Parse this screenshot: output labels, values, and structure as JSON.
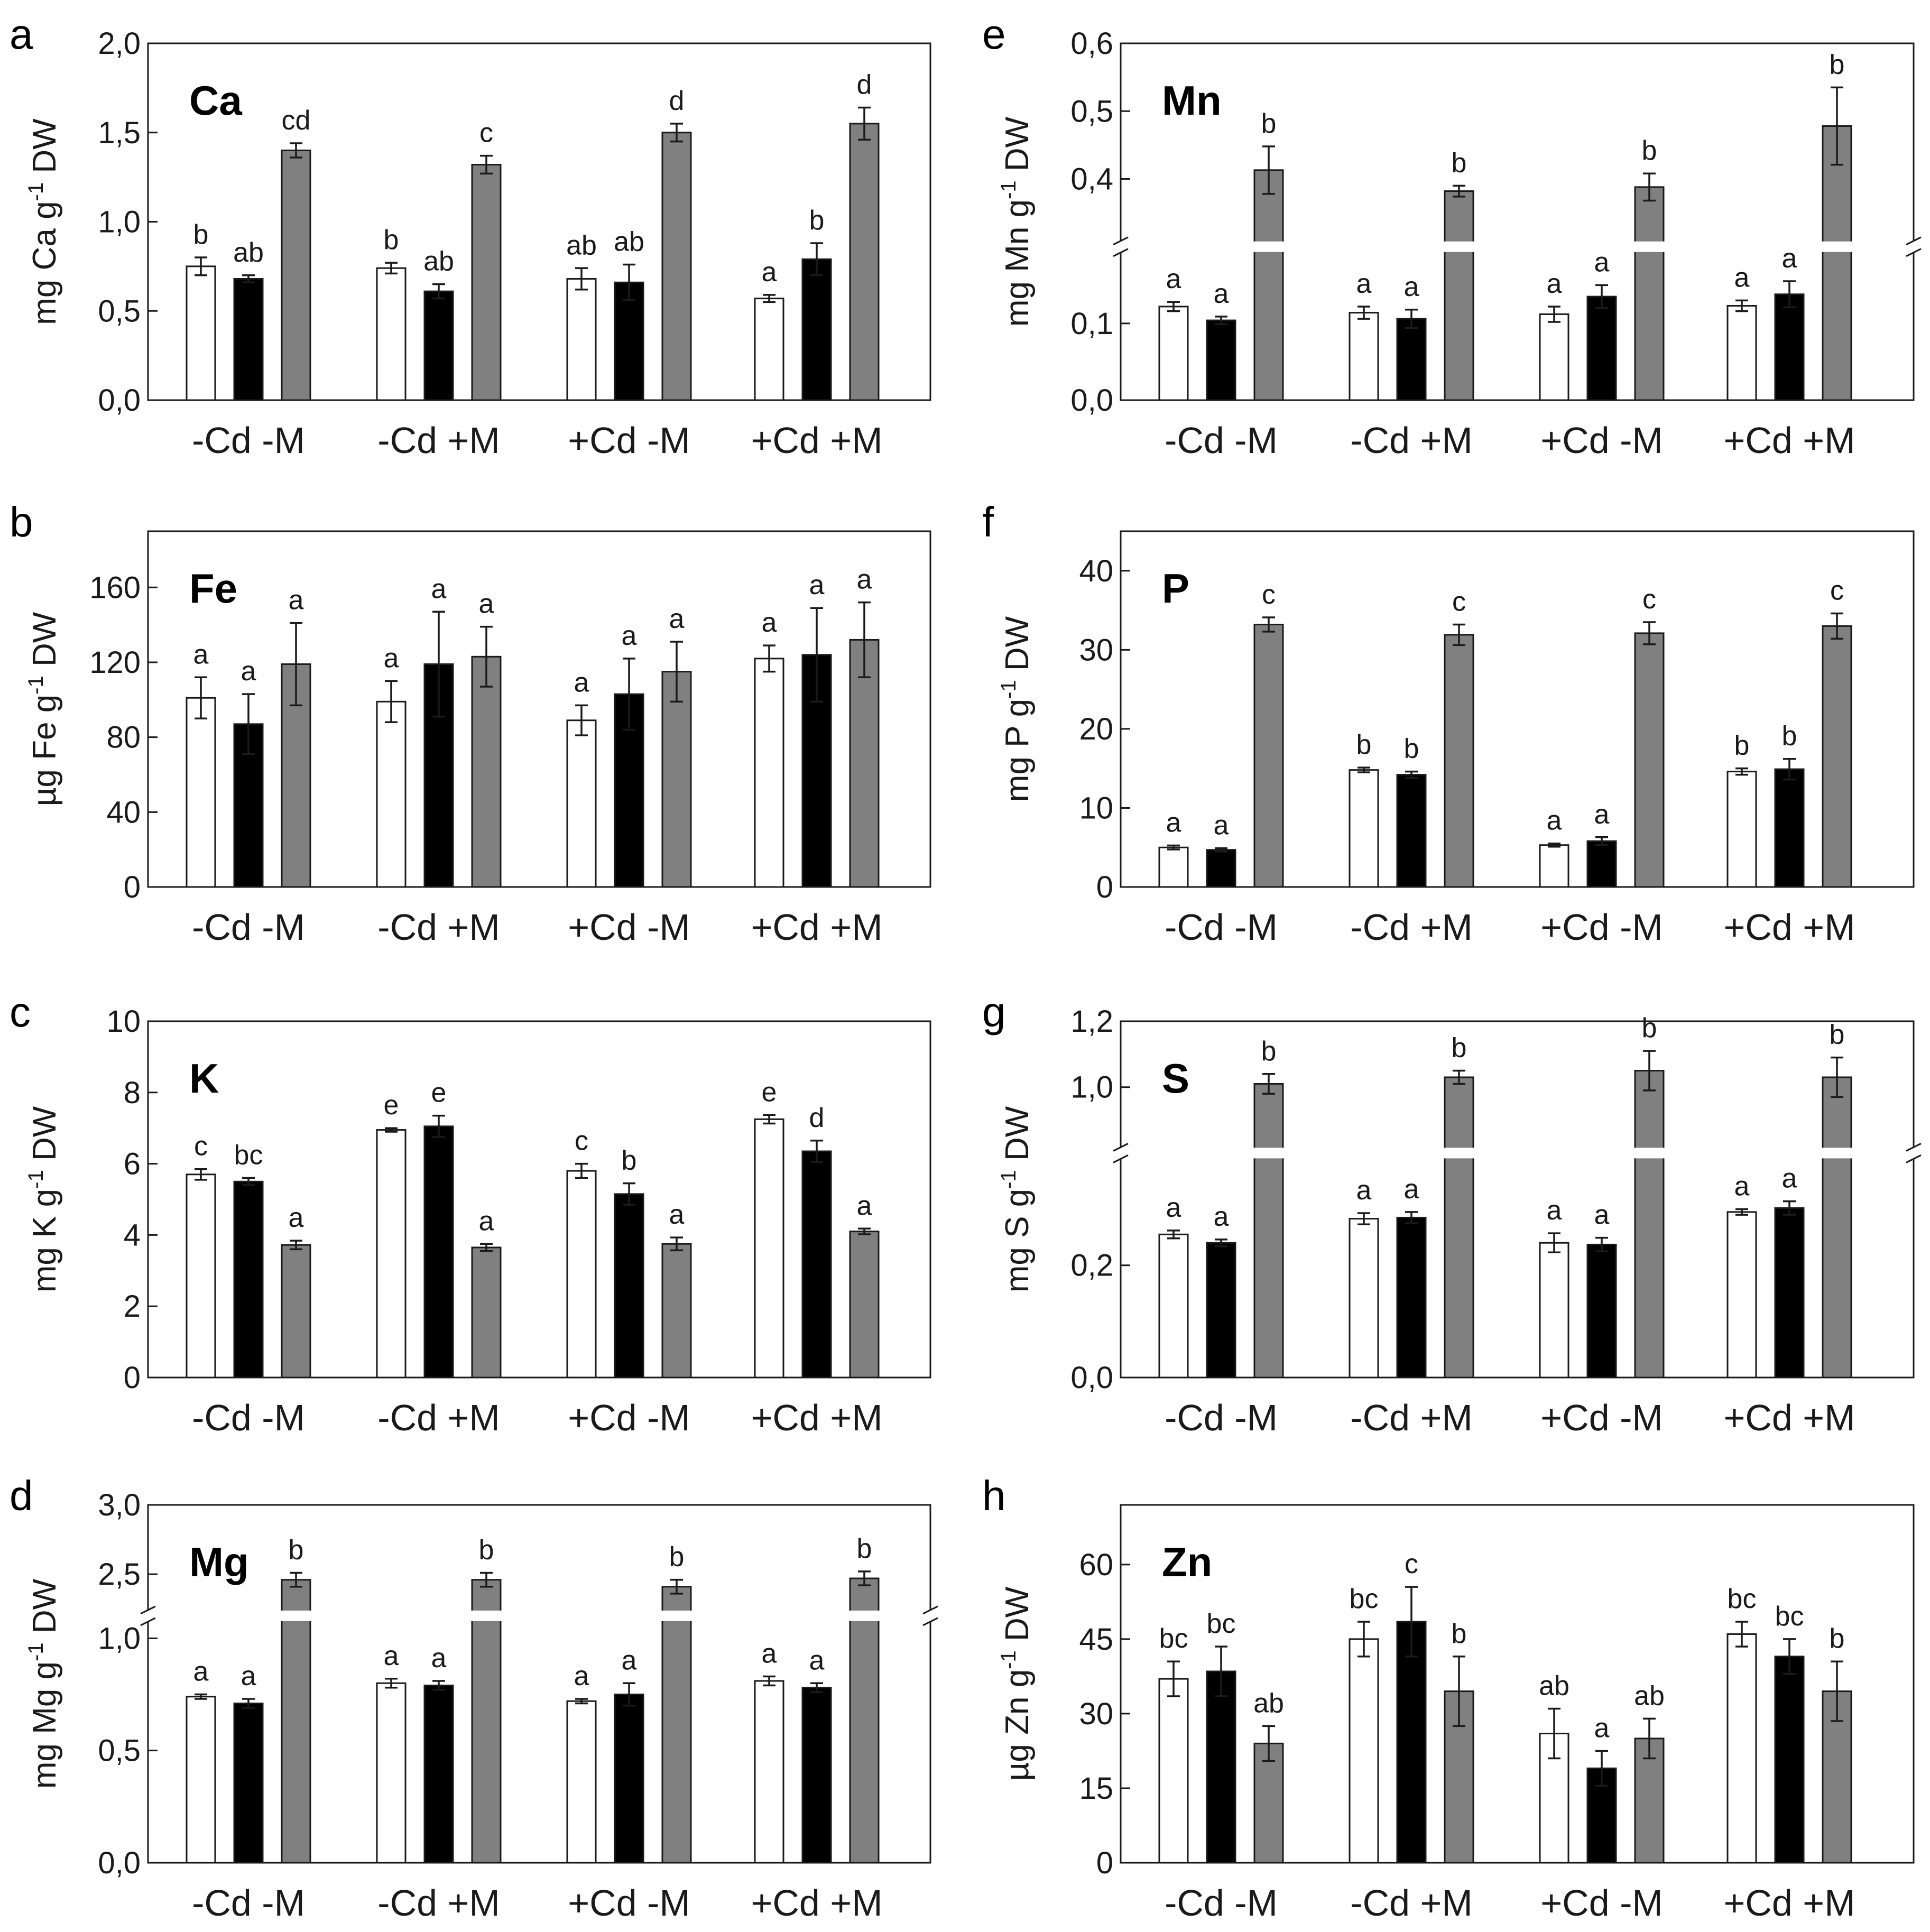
{
  "colors": {
    "control": "#ffffff",
    "treatment": "#000000",
    "third": "#808080",
    "axis": "#1a1a1a"
  },
  "chart_data": [
    {
      "panel": "a",
      "element": "Ca",
      "type": "bar",
      "ylabel": {
        "unit": "mg Ca g",
        "exp": "-1",
        "suffix": " DW"
      },
      "categories": [
        "-Cd -M",
        "-Cd +M",
        "+Cd -M",
        "+Cd +M"
      ],
      "ylim": [
        0,
        2.0
      ],
      "ticks": [
        0,
        0.5,
        1.0,
        1.5,
        2.0
      ],
      "tick_labels": [
        "0,0",
        "0,5",
        "1,0",
        "1,5",
        "2,0"
      ],
      "series": [
        {
          "name": "white",
          "values": [
            0.75,
            0.74,
            0.68,
            0.57
          ],
          "errors": [
            0.05,
            0.03,
            0.06,
            0.02
          ],
          "letters": [
            "b",
            "b",
            "ab",
            "a"
          ]
        },
        {
          "name": "black",
          "values": [
            0.68,
            0.61,
            0.66,
            0.79
          ],
          "errors": [
            0.02,
            0.04,
            0.1,
            0.09
          ],
          "letters": [
            "ab",
            "ab",
            "ab",
            "b"
          ]
        },
        {
          "name": "gray",
          "values": [
            1.4,
            1.32,
            1.5,
            1.55
          ],
          "errors": [
            0.04,
            0.05,
            0.05,
            0.09
          ],
          "letters": [
            "cd",
            "c",
            "d",
            "d"
          ]
        }
      ]
    },
    {
      "panel": "b",
      "element": "Fe",
      "type": "bar",
      "ylabel": {
        "unit": "µg Fe g",
        "exp": "-1",
        "suffix": " DW"
      },
      "categories": [
        "-Cd -M",
        "-Cd +M",
        "+Cd -M",
        "+Cd +M"
      ],
      "ylim": [
        0,
        190
      ],
      "ticks": [
        0,
        40,
        80,
        120,
        160
      ],
      "tick_labels": [
        "0",
        "40",
        "80",
        "120",
        "160"
      ],
      "series": [
        {
          "name": "white",
          "values": [
            101,
            99,
            89,
            122
          ],
          "errors": [
            11,
            11,
            8,
            7
          ],
          "letters": [
            "a",
            "a",
            "a",
            "a"
          ]
        },
        {
          "name": "black",
          "values": [
            87,
            119,
            103,
            124
          ],
          "errors": [
            16,
            28,
            19,
            25
          ],
          "letters": [
            "a",
            "a",
            "a",
            "a"
          ]
        },
        {
          "name": "gray",
          "values": [
            119,
            123,
            115,
            132
          ],
          "errors": [
            22,
            16,
            16,
            20
          ],
          "letters": [
            "a",
            "a",
            "a",
            "a"
          ]
        }
      ]
    },
    {
      "panel": "c",
      "element": "K",
      "type": "bar",
      "ylabel": {
        "unit": "mg K g",
        "exp": "-1",
        "suffix": " DW"
      },
      "categories": [
        "-Cd -M",
        "-Cd +M",
        "+Cd -M",
        "+Cd +M"
      ],
      "ylim": [
        0,
        10
      ],
      "ticks": [
        0,
        2,
        4,
        6,
        8,
        10
      ],
      "tick_labels": [
        "0",
        "2",
        "4",
        "6",
        "8",
        "10"
      ],
      "series": [
        {
          "name": "white",
          "values": [
            5.7,
            6.95,
            5.8,
            7.25
          ],
          "errors": [
            0.15,
            0.05,
            0.2,
            0.12
          ],
          "letters": [
            "c",
            "e",
            "c",
            "e"
          ]
        },
        {
          "name": "black",
          "values": [
            5.5,
            7.05,
            5.15,
            6.35
          ],
          "errors": [
            0.1,
            0.3,
            0.3,
            0.3
          ],
          "letters": [
            "bc",
            "e",
            "b",
            "d"
          ]
        },
        {
          "name": "gray",
          "values": [
            3.72,
            3.65,
            3.75,
            4.1
          ],
          "errors": [
            0.12,
            0.1,
            0.18,
            0.08
          ],
          "letters": [
            "a",
            "a",
            "a",
            "a"
          ]
        }
      ]
    },
    {
      "panel": "d",
      "element": "Mg",
      "type": "bar",
      "ylabel": {
        "unit": "mg Mg g",
        "exp": "-1",
        "suffix": " DW"
      },
      "categories": [
        "-Cd -M",
        "-Cd +M",
        "+Cd -M",
        "+Cd +M"
      ],
      "ylim": [
        0,
        3.0
      ],
      "axis_break": {
        "lower_max": 1.1,
        "upper_min": 2.2,
        "lower_fraction": 0.69
      },
      "ticks": [
        0,
        0.5,
        1.0,
        2.5,
        3.0
      ],
      "tick_labels": [
        "0,0",
        "0,5",
        "1,0",
        "2,5",
        "3,0"
      ],
      "series": [
        {
          "name": "white",
          "values": [
            0.74,
            0.8,
            0.72,
            0.81
          ],
          "errors": [
            0.01,
            0.02,
            0.01,
            0.02
          ],
          "letters": [
            "a",
            "a",
            "a",
            "a"
          ]
        },
        {
          "name": "black",
          "values": [
            0.71,
            0.79,
            0.75,
            0.78
          ],
          "errors": [
            0.02,
            0.02,
            0.05,
            0.02
          ],
          "letters": [
            "a",
            "a",
            "a",
            "a"
          ]
        },
        {
          "name": "gray",
          "values": [
            2.46,
            2.46,
            2.41,
            2.47
          ],
          "errors": [
            0.05,
            0.05,
            0.05,
            0.05
          ],
          "letters": [
            "b",
            "b",
            "b",
            "b"
          ]
        }
      ]
    },
    {
      "panel": "e",
      "element": "Mn",
      "type": "bar",
      "ylabel": {
        "unit": "mg Mn g",
        "exp": "-1",
        "suffix": " DW"
      },
      "categories": [
        "-Cd -M",
        "-Cd +M",
        "+Cd -M",
        "+Cd +M"
      ],
      "ylim": [
        0,
        0.6
      ],
      "axis_break": {
        "lower_max": 0.2,
        "upper_min": 0.3,
        "lower_fraction": 0.43
      },
      "ticks": [
        0,
        0.1,
        0.4,
        0.5,
        0.6
      ],
      "tick_labels": [
        "0,0",
        "0,1",
        "0,4",
        "0,5",
        "0,6"
      ],
      "series": [
        {
          "name": "white",
          "values": [
            0.122,
            0.114,
            0.112,
            0.123
          ],
          "errors": [
            0.006,
            0.008,
            0.01,
            0.007
          ],
          "letters": [
            "a",
            "a",
            "a",
            "a"
          ]
        },
        {
          "name": "black",
          "values": [
            0.104,
            0.106,
            0.135,
            0.138
          ],
          "errors": [
            0.005,
            0.012,
            0.015,
            0.017
          ],
          "letters": [
            "a",
            "a",
            "a",
            "a"
          ]
        },
        {
          "name": "gray",
          "values": [
            0.413,
            0.382,
            0.388,
            0.478
          ],
          "errors": [
            0.035,
            0.008,
            0.02,
            0.057
          ],
          "letters": [
            "b",
            "b",
            "b",
            "b"
          ]
        }
      ]
    },
    {
      "panel": "f",
      "element": "P",
      "type": "bar",
      "ylabel": {
        "unit": "mg P g",
        "exp": "-1",
        "suffix": " DW"
      },
      "categories": [
        "-Cd -M",
        "-Cd +M",
        "+Cd -M",
        "+Cd +M"
      ],
      "ylim": [
        0,
        45
      ],
      "ticks": [
        0,
        10,
        20,
        30,
        40
      ],
      "tick_labels": [
        "0",
        "10",
        "20",
        "30",
        "40"
      ],
      "series": [
        {
          "name": "white",
          "values": [
            5.0,
            14.8,
            5.3,
            14.6
          ],
          "errors": [
            0.25,
            0.3,
            0.2,
            0.4
          ],
          "letters": [
            "a",
            "b",
            "a",
            "b"
          ]
        },
        {
          "name": "black",
          "values": [
            4.7,
            14.2,
            5.8,
            14.9
          ],
          "errors": [
            0.2,
            0.4,
            0.5,
            1.3
          ],
          "letters": [
            "a",
            "b",
            "a",
            "b"
          ]
        },
        {
          "name": "gray",
          "values": [
            33.2,
            31.9,
            32.1,
            33.0
          ],
          "errors": [
            0.9,
            1.3,
            1.4,
            1.6
          ],
          "letters": [
            "c",
            "c",
            "c",
            "c"
          ]
        }
      ]
    },
    {
      "panel": "g",
      "element": "S",
      "type": "bar",
      "ylabel": {
        "unit": "mg S g",
        "exp": "-1",
        "suffix": " DW"
      },
      "categories": [
        "-Cd -M",
        "-Cd +M",
        "+Cd -M",
        "+Cd +M"
      ],
      "ylim": [
        0,
        1.2
      ],
      "axis_break": {
        "lower_max": 0.4,
        "upper_min": 0.8,
        "lower_fraction": 0.63
      },
      "ticks": [
        0,
        0.2,
        1.0,
        1.2
      ],
      "tick_labels": [
        "0,0",
        "0,2",
        "1,0",
        "1,2"
      ],
      "series": [
        {
          "name": "white",
          "values": [
            0.255,
            0.283,
            0.24,
            0.295
          ],
          "errors": [
            0.007,
            0.01,
            0.017,
            0.005
          ],
          "letters": [
            "a",
            "a",
            "a",
            "a"
          ]
        },
        {
          "name": "black",
          "values": [
            0.24,
            0.285,
            0.237,
            0.302
          ],
          "errors": [
            0.006,
            0.01,
            0.012,
            0.012
          ],
          "letters": [
            "a",
            "a",
            "a",
            "a"
          ]
        },
        {
          "name": "gray",
          "values": [
            1.01,
            1.03,
            1.05,
            1.03
          ],
          "errors": [
            0.03,
            0.02,
            0.06,
            0.06
          ],
          "letters": [
            "b",
            "b",
            "b",
            "b"
          ]
        }
      ]
    },
    {
      "panel": "h",
      "element": "Zn",
      "type": "bar",
      "ylabel": {
        "unit": "µg Zn g",
        "exp": "-1",
        "suffix": " DW"
      },
      "categories": [
        "-Cd -M",
        "-Cd +M",
        "+Cd -M",
        "+Cd +M"
      ],
      "ylim": [
        0,
        72
      ],
      "ticks": [
        0,
        15,
        30,
        45,
        60
      ],
      "tick_labels": [
        "0",
        "15",
        "30",
        "45",
        "60"
      ],
      "series": [
        {
          "name": "white",
          "values": [
            37,
            45,
            26,
            46
          ],
          "errors": [
            3.5,
            3.5,
            5,
            2.5
          ],
          "letters": [
            "bc",
            "bc",
            "ab",
            "bc"
          ]
        },
        {
          "name": "black",
          "values": [
            38.5,
            48.5,
            19,
            41.5
          ],
          "errors": [
            5,
            7,
            3.5,
            3.5
          ],
          "letters": [
            "bc",
            "c",
            "a",
            "bc"
          ]
        },
        {
          "name": "gray",
          "values": [
            24,
            34.5,
            25,
            34.5
          ],
          "errors": [
            3.5,
            7,
            4,
            6
          ],
          "letters": [
            "ab",
            "b",
            "ab",
            "b"
          ]
        }
      ]
    }
  ]
}
